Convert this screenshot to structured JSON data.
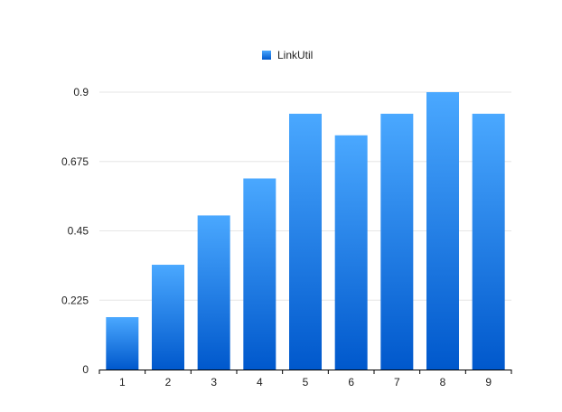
{
  "chart_data": {
    "type": "bar",
    "categories": [
      "1",
      "2",
      "3",
      "4",
      "5",
      "6",
      "7",
      "8",
      "9"
    ],
    "series": [
      {
        "name": "LinkUtil",
        "values": [
          0.17,
          0.34,
          0.5,
          0.62,
          0.83,
          0.76,
          0.83,
          0.9,
          0.83
        ]
      }
    ],
    "yticks": [
      "0",
      "0.225",
      "0.45",
      "0.675",
      "0.9"
    ],
    "ylim": [
      0,
      0.9
    ],
    "legend_position": "top-center",
    "grid": true,
    "colors": {
      "bar_top": "#4aa8ff",
      "bar_bottom": "#0058cc",
      "grid": "#e6e6e6",
      "axis": "#000000"
    }
  }
}
